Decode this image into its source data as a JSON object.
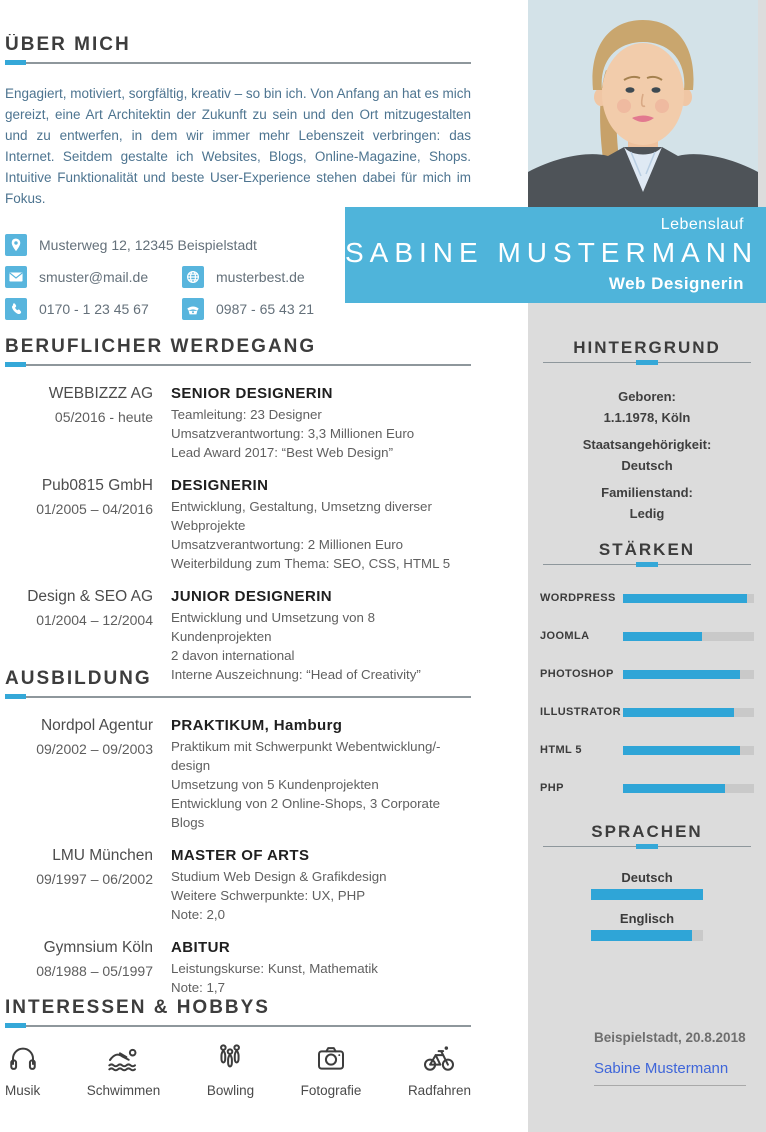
{
  "colors": {
    "accent_blue": "#35a8d8",
    "banner_blue": "#4fb4da",
    "sidebar_gray": "#dcdcdc",
    "intro_text": "#4d7490",
    "signature_blue": "#3f66d9"
  },
  "about": {
    "heading": "ÜBER MICH",
    "text": "Engagiert, motiviert, sorgfältig, kreativ – so bin ich. Von Anfang an hat es mich gereizt, eine Art Architektin der Zukunft zu sein und den Ort mitzugestalten und zu entwerfen, in dem wir immer mehr Lebenszeit verbringen: das Internet. Seitdem gestalte ich Websites, Blogs, Online-Magazine, Shops. Intuitive Funktionalität und beste User-Experience stehen dabei für mich im Fokus."
  },
  "contact": {
    "address": "Musterweg 12, 12345 Beispielstadt",
    "email": "smuster@mail.de",
    "website": "musterbest.de",
    "mobile": "0170 - 1 23 45 67",
    "phone": "0987 - 65 43 21"
  },
  "banner": {
    "label": "Lebenslauf",
    "name": "SABINE MUSTERMANN",
    "role": "Web Designerin"
  },
  "career": {
    "heading": "BERUFLICHER WERDEGANG",
    "items": [
      {
        "company": "WEBBIZZZ AG",
        "period": "05/2016 - heute",
        "title": "SENIOR DESIGNERIN",
        "lines": [
          "Teamleitung: 23 Designer",
          "Umsatzverantwortung: 3,3 Millionen Euro",
          "Lead Award 2017: “Best Web Design”"
        ]
      },
      {
        "company": "Pub0815 GmbH",
        "period": "01/2005 – 04/2016",
        "title": "DESIGNERIN",
        "lines": [
          "Entwicklung, Gestaltung, Umsetzng diverser Webprojekte",
          "Umsatzverantwortung: 2 Millionen Euro",
          "Weiterbildung zum Thema: SEO, CSS, HTML 5"
        ]
      },
      {
        "company": "Design & SEO AG",
        "period": "01/2004 – 12/2004",
        "title": "JUNIOR DESIGNERIN",
        "lines": [
          "Entwicklung und Umsetzung von 8 Kundenprojekten",
          "2 davon international",
          "Interne Auszeichnung: “Head of Creativity”"
        ]
      }
    ]
  },
  "education": {
    "heading": "AUSBILDUNG",
    "items": [
      {
        "company": "Nordpol Agentur",
        "period": "09/2002 – 09/2003",
        "title": "PRAKTIKUM, Hamburg",
        "lines": [
          "Praktikum mit Schwerpunkt Webentwicklung/-design",
          "Umsetzung von 5 Kundenprojekten",
          "Entwicklung von 2 Online-Shops, 3 Corporate Blogs"
        ]
      },
      {
        "company": "LMU München",
        "period": "09/1997 – 06/2002",
        "title": "MASTER OF ARTS",
        "lines": [
          "Studium Web Design & Grafikdesign",
          "Weitere Schwerpunkte: UX, PHP",
          "Note: 2,0"
        ]
      },
      {
        "company": "Gymnsium Köln",
        "period": "08/1988 – 05/1997",
        "title": "ABITUR",
        "lines": [
          "Leistungskurse: Kunst, Mathematik",
          "Note: 1,7"
        ]
      }
    ]
  },
  "hobbies": {
    "heading": "INTERESSEN & HOBBYS",
    "items": [
      {
        "label": "Musik",
        "icon": "headphones-icon"
      },
      {
        "label": "Schwimmen",
        "icon": "swimmer-icon"
      },
      {
        "label": "Bowling",
        "icon": "bowling-pins-icon"
      },
      {
        "label": "Fotografie",
        "icon": "camera-icon"
      },
      {
        "label": "Radfahren",
        "icon": "bicycle-icon"
      }
    ]
  },
  "sidebar": {
    "background": {
      "heading": "HINTERGRUND",
      "fields": [
        {
          "label": "Geboren:",
          "value": "1.1.1978, Köln"
        },
        {
          "label": "Staatsangehörigkeit:",
          "value": "Deutsch"
        },
        {
          "label": "Familienstand:",
          "value": "Ledig"
        }
      ]
    },
    "skills": {
      "heading": "STÄRKEN",
      "items": [
        {
          "label": "WORDPRESS",
          "percent": 95
        },
        {
          "label": "JOOMLA",
          "percent": 60
        },
        {
          "label": "PHOTOSHOP",
          "percent": 89
        },
        {
          "label": "ILLUSTRATOR",
          "percent": 85
        },
        {
          "label": "HTML 5",
          "percent": 89
        },
        {
          "label": "PHP",
          "percent": 78
        }
      ]
    },
    "languages": {
      "heading": "SPRACHEN",
      "items": [
        {
          "label": "Deutsch",
          "percent": 100
        },
        {
          "label": "Englisch",
          "percent": 90
        }
      ]
    },
    "signature": {
      "place_date": "Beispielstadt, 20.8.2018",
      "name": "Sabine Mustermann"
    }
  }
}
